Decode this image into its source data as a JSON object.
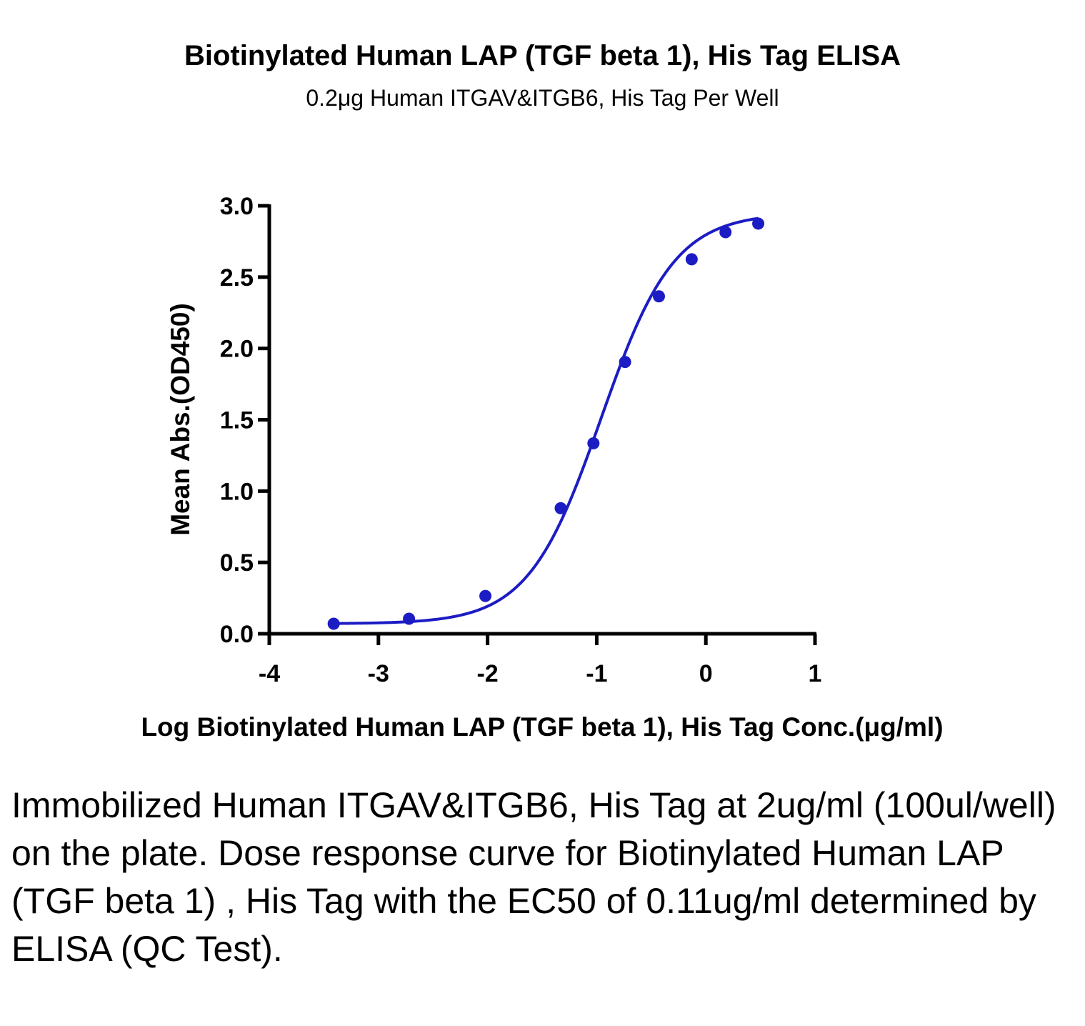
{
  "chart_data": {
    "type": "scatter",
    "title": "Biotinylated Human LAP (TGF beta 1), His Tag ELISA",
    "subtitle": "0.2μg Human ITGAV&ITGB6, His Tag Per Well",
    "xlabel": "Log Biotinylated Human LAP (TGF beta 1), His Tag Conc.(μg/ml)",
    "ylabel": "Mean Abs.(OD450)",
    "xlim": [
      -4,
      1
    ],
    "ylim": [
      0,
      3.0
    ],
    "x_ticks": [
      "-4",
      "-3",
      "-2",
      "-1",
      "0",
      "1"
    ],
    "y_ticks": [
      "0.0",
      "0.5",
      "1.0",
      "1.5",
      "2.0",
      "2.5",
      "3.0"
    ],
    "grid": false,
    "series": [
      {
        "color": "#1c1cc4",
        "points": [
          {
            "x": -3.41,
            "y": 0.07
          },
          {
            "x": -2.72,
            "y": 0.105
          },
          {
            "x": -2.02,
            "y": 0.265
          },
          {
            "x": -1.33,
            "y": 0.88
          },
          {
            "x": -1.03,
            "y": 1.335
          },
          {
            "x": -0.74,
            "y": 1.905
          },
          {
            "x": -0.43,
            "y": 2.365
          },
          {
            "x": -0.13,
            "y": 2.625
          },
          {
            "x": 0.18,
            "y": 2.815
          },
          {
            "x": 0.48,
            "y": 2.875
          }
        ],
        "fit": {
          "model": "four-parameter logistic",
          "bottom": 0.07,
          "top": 2.95,
          "log_ec50": -0.96,
          "hill_slope": 1.3
        }
      }
    ]
  },
  "caption": "Immobilized Human ITGAV&ITGB6, His Tag at 2ug/ml (100ul/well) on the plate. Dose response curve for Biotinylated Human LAP (TGF beta 1) , His Tag with the EC50 of 0.11ug/ml determined by ELISA (QC Test)."
}
